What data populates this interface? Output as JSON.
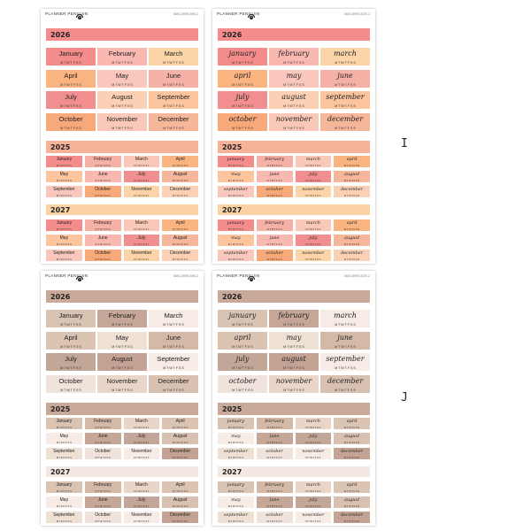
{
  "brand": "PLANNER PENGUIN",
  "brand_icon": "penguin-logo-icon",
  "day_letters": "M T W T F S S",
  "years": {
    "main": "2026",
    "second": "2025",
    "third": "2027"
  },
  "months_print": [
    "January",
    "February",
    "March",
    "April",
    "May",
    "June",
    "July",
    "August",
    "September",
    "October",
    "November",
    "December"
  ],
  "months_script": [
    "january",
    "february",
    "march",
    "april",
    "may",
    "june",
    "july",
    "august",
    "september",
    "october",
    "november",
    "december"
  ],
  "sheets": [
    {
      "id": "I-print",
      "code": "MAS-0909-WW-1",
      "style": "print",
      "group": "I"
    },
    {
      "id": "I-script",
      "code": "MAS-0909-SCR-1",
      "style": "script",
      "group": "I"
    },
    {
      "id": "J-print",
      "code": "MAS-0909-WW-2",
      "style": "print",
      "group": "J"
    },
    {
      "id": "J-script",
      "code": "MAS-0909-SCR-2",
      "style": "script",
      "group": "J"
    }
  ],
  "side_labels": [
    "I",
    "J"
  ],
  "palettes": {
    "I": {
      "year_main": "#f38c8a",
      "year_second": "#f7b29a",
      "year_third": "#fbd2a4",
      "cells": [
        "#f38c8a",
        "#f9b9b1",
        "#fbd4a8",
        "#fab47f",
        "#f9c7bc",
        "#f6b1a6",
        "#f18e8f",
        "#fbd0b5",
        "#fcc59e",
        "#f8a97a",
        "#f9c8b9",
        "#f6b69a"
      ]
    },
    "J": {
      "year_main": "#c9a999",
      "year_second": "#c9a99a",
      "year_third": "#f3e9e2",
      "cells": [
        "#d9c3b3",
        "#c6a696",
        "#f6ebe5",
        "#dcc4b3",
        "#efe0d4",
        "#d4b9a6",
        "#c2a798",
        "#c4a294",
        "#f6ebe5",
        "#efe3dc",
        "#e9d6c9",
        "#d9c1b1"
      ]
    }
  }
}
